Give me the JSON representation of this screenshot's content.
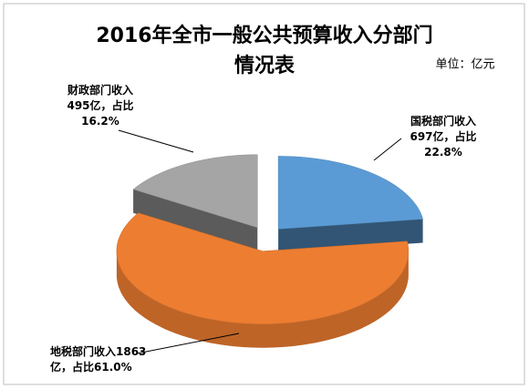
{
  "chart_data": {
    "type": "pie3d",
    "title_lines": [
      "2016年全市一般公共预算收入分部门",
      "情况表"
    ],
    "unit": "单位：亿元",
    "categories": [
      "国税部门收入",
      "地税部门收入",
      "财政部门收入"
    ],
    "values": [
      697,
      1863,
      495
    ],
    "value_labels": [
      "国税部门收入\n697亿，占比\n22.8%",
      "地税部门收入1863\n亿，占比61.0%",
      "财政部门收入\n495亿，占比\n16.2%"
    ],
    "colors": [
      "#5b9bd5",
      "#ed7d31",
      "#a5a5a5"
    ]
  }
}
